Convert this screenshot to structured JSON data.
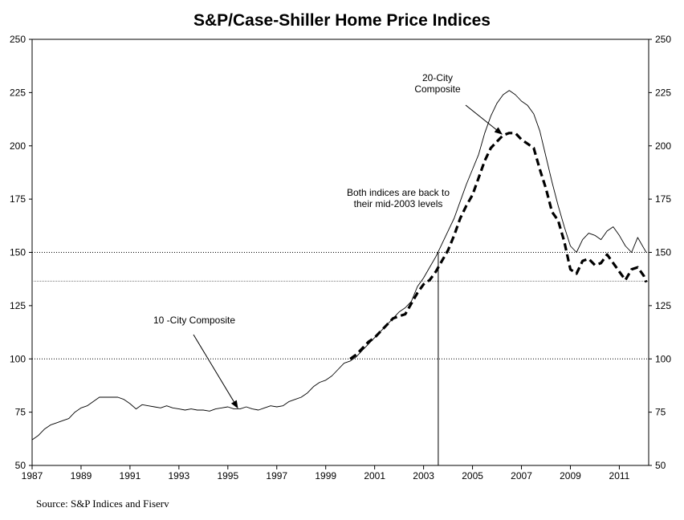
{
  "chart_data": {
    "type": "line",
    "title": "S&P/Case-Shiller Home Price Indices",
    "source": "Source: S&P Indices and Fiserv",
    "xlabel": "",
    "ylabel": "",
    "xlim": [
      1987,
      2012.2
    ],
    "ylim": [
      50,
      250
    ],
    "x_ticks": [
      "1987",
      "1989",
      "1991",
      "1993",
      "1995",
      "1997",
      "1999",
      "2001",
      "2003",
      "2005",
      "2007",
      "2009",
      "2011"
    ],
    "y_ticks": [
      50,
      75,
      100,
      125,
      150,
      175,
      200,
      225,
      250
    ],
    "y_axis_right": true,
    "reference_lines": [
      {
        "axis": "y",
        "value": 150,
        "style": "dotted"
      },
      {
        "axis": "y",
        "value": 100,
        "style": "dotted"
      },
      {
        "axis": "y",
        "value": 136.5,
        "style": "dotted-light"
      },
      {
        "axis": "x",
        "value": 2003.6,
        "style": "solid"
      }
    ],
    "series": [
      {
        "name": "10 -City Composite",
        "style": "solid-thin",
        "color": "#000000",
        "points": [
          [
            1987.0,
            62
          ],
          [
            1987.25,
            64
          ],
          [
            1987.5,
            67
          ],
          [
            1987.75,
            69
          ],
          [
            1988.0,
            70
          ],
          [
            1988.25,
            71
          ],
          [
            1988.5,
            72
          ],
          [
            1988.75,
            75
          ],
          [
            1989.0,
            77
          ],
          [
            1989.25,
            78
          ],
          [
            1989.5,
            80
          ],
          [
            1989.75,
            82
          ],
          [
            1990.0,
            82
          ],
          [
            1990.25,
            82
          ],
          [
            1990.5,
            82
          ],
          [
            1990.75,
            81
          ],
          [
            1991.0,
            79
          ],
          [
            1991.25,
            76.5
          ],
          [
            1991.5,
            78.5
          ],
          [
            1991.75,
            78
          ],
          [
            1992.0,
            77.5
          ],
          [
            1992.25,
            77
          ],
          [
            1992.5,
            78
          ],
          [
            1992.75,
            77
          ],
          [
            1993.0,
            76.5
          ],
          [
            1993.25,
            76
          ],
          [
            1993.5,
            76.5
          ],
          [
            1993.75,
            76
          ],
          [
            1994.0,
            76
          ],
          [
            1994.25,
            75.5
          ],
          [
            1994.5,
            76.5
          ],
          [
            1994.75,
            77
          ],
          [
            1995.0,
            77.5
          ],
          [
            1995.25,
            76.5
          ],
          [
            1995.5,
            76.5
          ],
          [
            1995.75,
            77.5
          ],
          [
            1996.0,
            76.5
          ],
          [
            1996.25,
            76
          ],
          [
            1996.5,
            77
          ],
          [
            1996.75,
            78
          ],
          [
            1997.0,
            77.5
          ],
          [
            1997.25,
            78
          ],
          [
            1997.5,
            80
          ],
          [
            1997.75,
            81
          ],
          [
            1998.0,
            82
          ],
          [
            1998.25,
            84
          ],
          [
            1998.5,
            87
          ],
          [
            1998.75,
            89
          ],
          [
            1999.0,
            90
          ],
          [
            1999.25,
            92
          ],
          [
            1999.5,
            95
          ],
          [
            1999.75,
            98
          ],
          [
            2000.0,
            99
          ],
          [
            2000.25,
            101
          ],
          [
            2000.5,
            104
          ],
          [
            2000.75,
            107
          ],
          [
            2001.0,
            110
          ],
          [
            2001.25,
            113
          ],
          [
            2001.5,
            116
          ],
          [
            2001.75,
            119
          ],
          [
            2002.0,
            122
          ],
          [
            2002.25,
            124
          ],
          [
            2002.5,
            127
          ],
          [
            2002.75,
            134
          ],
          [
            2003.0,
            138
          ],
          [
            2003.25,
            143
          ],
          [
            2003.5,
            148
          ],
          [
            2003.75,
            154
          ],
          [
            2004.0,
            160
          ],
          [
            2004.25,
            166
          ],
          [
            2004.5,
            174
          ],
          [
            2004.75,
            182
          ],
          [
            2005.0,
            189
          ],
          [
            2005.25,
            196
          ],
          [
            2005.5,
            206
          ],
          [
            2005.75,
            214
          ],
          [
            2006.0,
            220
          ],
          [
            2006.25,
            224
          ],
          [
            2006.5,
            226
          ],
          [
            2006.75,
            224
          ],
          [
            2007.0,
            221
          ],
          [
            2007.25,
            219
          ],
          [
            2007.5,
            215
          ],
          [
            2007.75,
            207
          ],
          [
            2008.0,
            195
          ],
          [
            2008.25,
            183
          ],
          [
            2008.5,
            172
          ],
          [
            2008.75,
            162
          ],
          [
            2009.0,
            153
          ],
          [
            2009.25,
            150
          ],
          [
            2009.5,
            156
          ],
          [
            2009.75,
            159
          ],
          [
            2010.0,
            158
          ],
          [
            2010.25,
            156
          ],
          [
            2010.5,
            160
          ],
          [
            2010.75,
            162
          ],
          [
            2011.0,
            158
          ],
          [
            2011.25,
            153
          ],
          [
            2011.5,
            150
          ],
          [
            2011.75,
            157
          ],
          [
            2012.0,
            152
          ],
          [
            2012.1,
            150
          ]
        ]
      },
      {
        "name": "20-City Composite",
        "style": "dashed-thick",
        "color": "#000000",
        "points": [
          [
            2000.0,
            100
          ],
          [
            2000.25,
            102
          ],
          [
            2000.5,
            105
          ],
          [
            2000.75,
            108
          ],
          [
            2001.0,
            110
          ],
          [
            2001.25,
            113
          ],
          [
            2001.5,
            116
          ],
          [
            2001.75,
            119
          ],
          [
            2002.0,
            120
          ],
          [
            2002.25,
            121
          ],
          [
            2002.5,
            126
          ],
          [
            2002.75,
            131
          ],
          [
            2003.0,
            135
          ],
          [
            2003.25,
            137
          ],
          [
            2003.5,
            141
          ],
          [
            2003.75,
            146
          ],
          [
            2004.0,
            151
          ],
          [
            2004.25,
            158
          ],
          [
            2004.5,
            166
          ],
          [
            2004.75,
            172
          ],
          [
            2005.0,
            177
          ],
          [
            2005.25,
            185
          ],
          [
            2005.5,
            193
          ],
          [
            2005.75,
            199
          ],
          [
            2006.0,
            202
          ],
          [
            2006.25,
            205
          ],
          [
            2006.5,
            206
          ],
          [
            2006.75,
            206
          ],
          [
            2007.0,
            203
          ],
          [
            2007.25,
            201
          ],
          [
            2007.5,
            199
          ],
          [
            2007.75,
            189
          ],
          [
            2008.0,
            180
          ],
          [
            2008.25,
            169
          ],
          [
            2008.5,
            165
          ],
          [
            2008.75,
            155
          ],
          [
            2009.0,
            142
          ],
          [
            2009.25,
            140
          ],
          [
            2009.5,
            146
          ],
          [
            2009.75,
            147
          ],
          [
            2010.0,
            144
          ],
          [
            2010.25,
            145
          ],
          [
            2010.5,
            149
          ],
          [
            2010.75,
            145
          ],
          [
            2011.0,
            141
          ],
          [
            2011.25,
            137
          ],
          [
            2011.5,
            142
          ],
          [
            2011.75,
            143
          ],
          [
            2012.0,
            139
          ],
          [
            2012.1,
            136
          ]
        ]
      }
    ],
    "annotations": [
      {
        "lines": [
          "20-City",
          "Composite"
        ],
        "arrow_to": [
          2006.2,
          205.5
        ]
      },
      {
        "lines": [
          "Both indices are back to",
          "their mid-2003 levels"
        ],
        "arrow_to": null
      },
      {
        "lines": [
          "10 -City Composite"
        ],
        "arrow_to": [
          1995.4,
          77
        ]
      }
    ]
  }
}
